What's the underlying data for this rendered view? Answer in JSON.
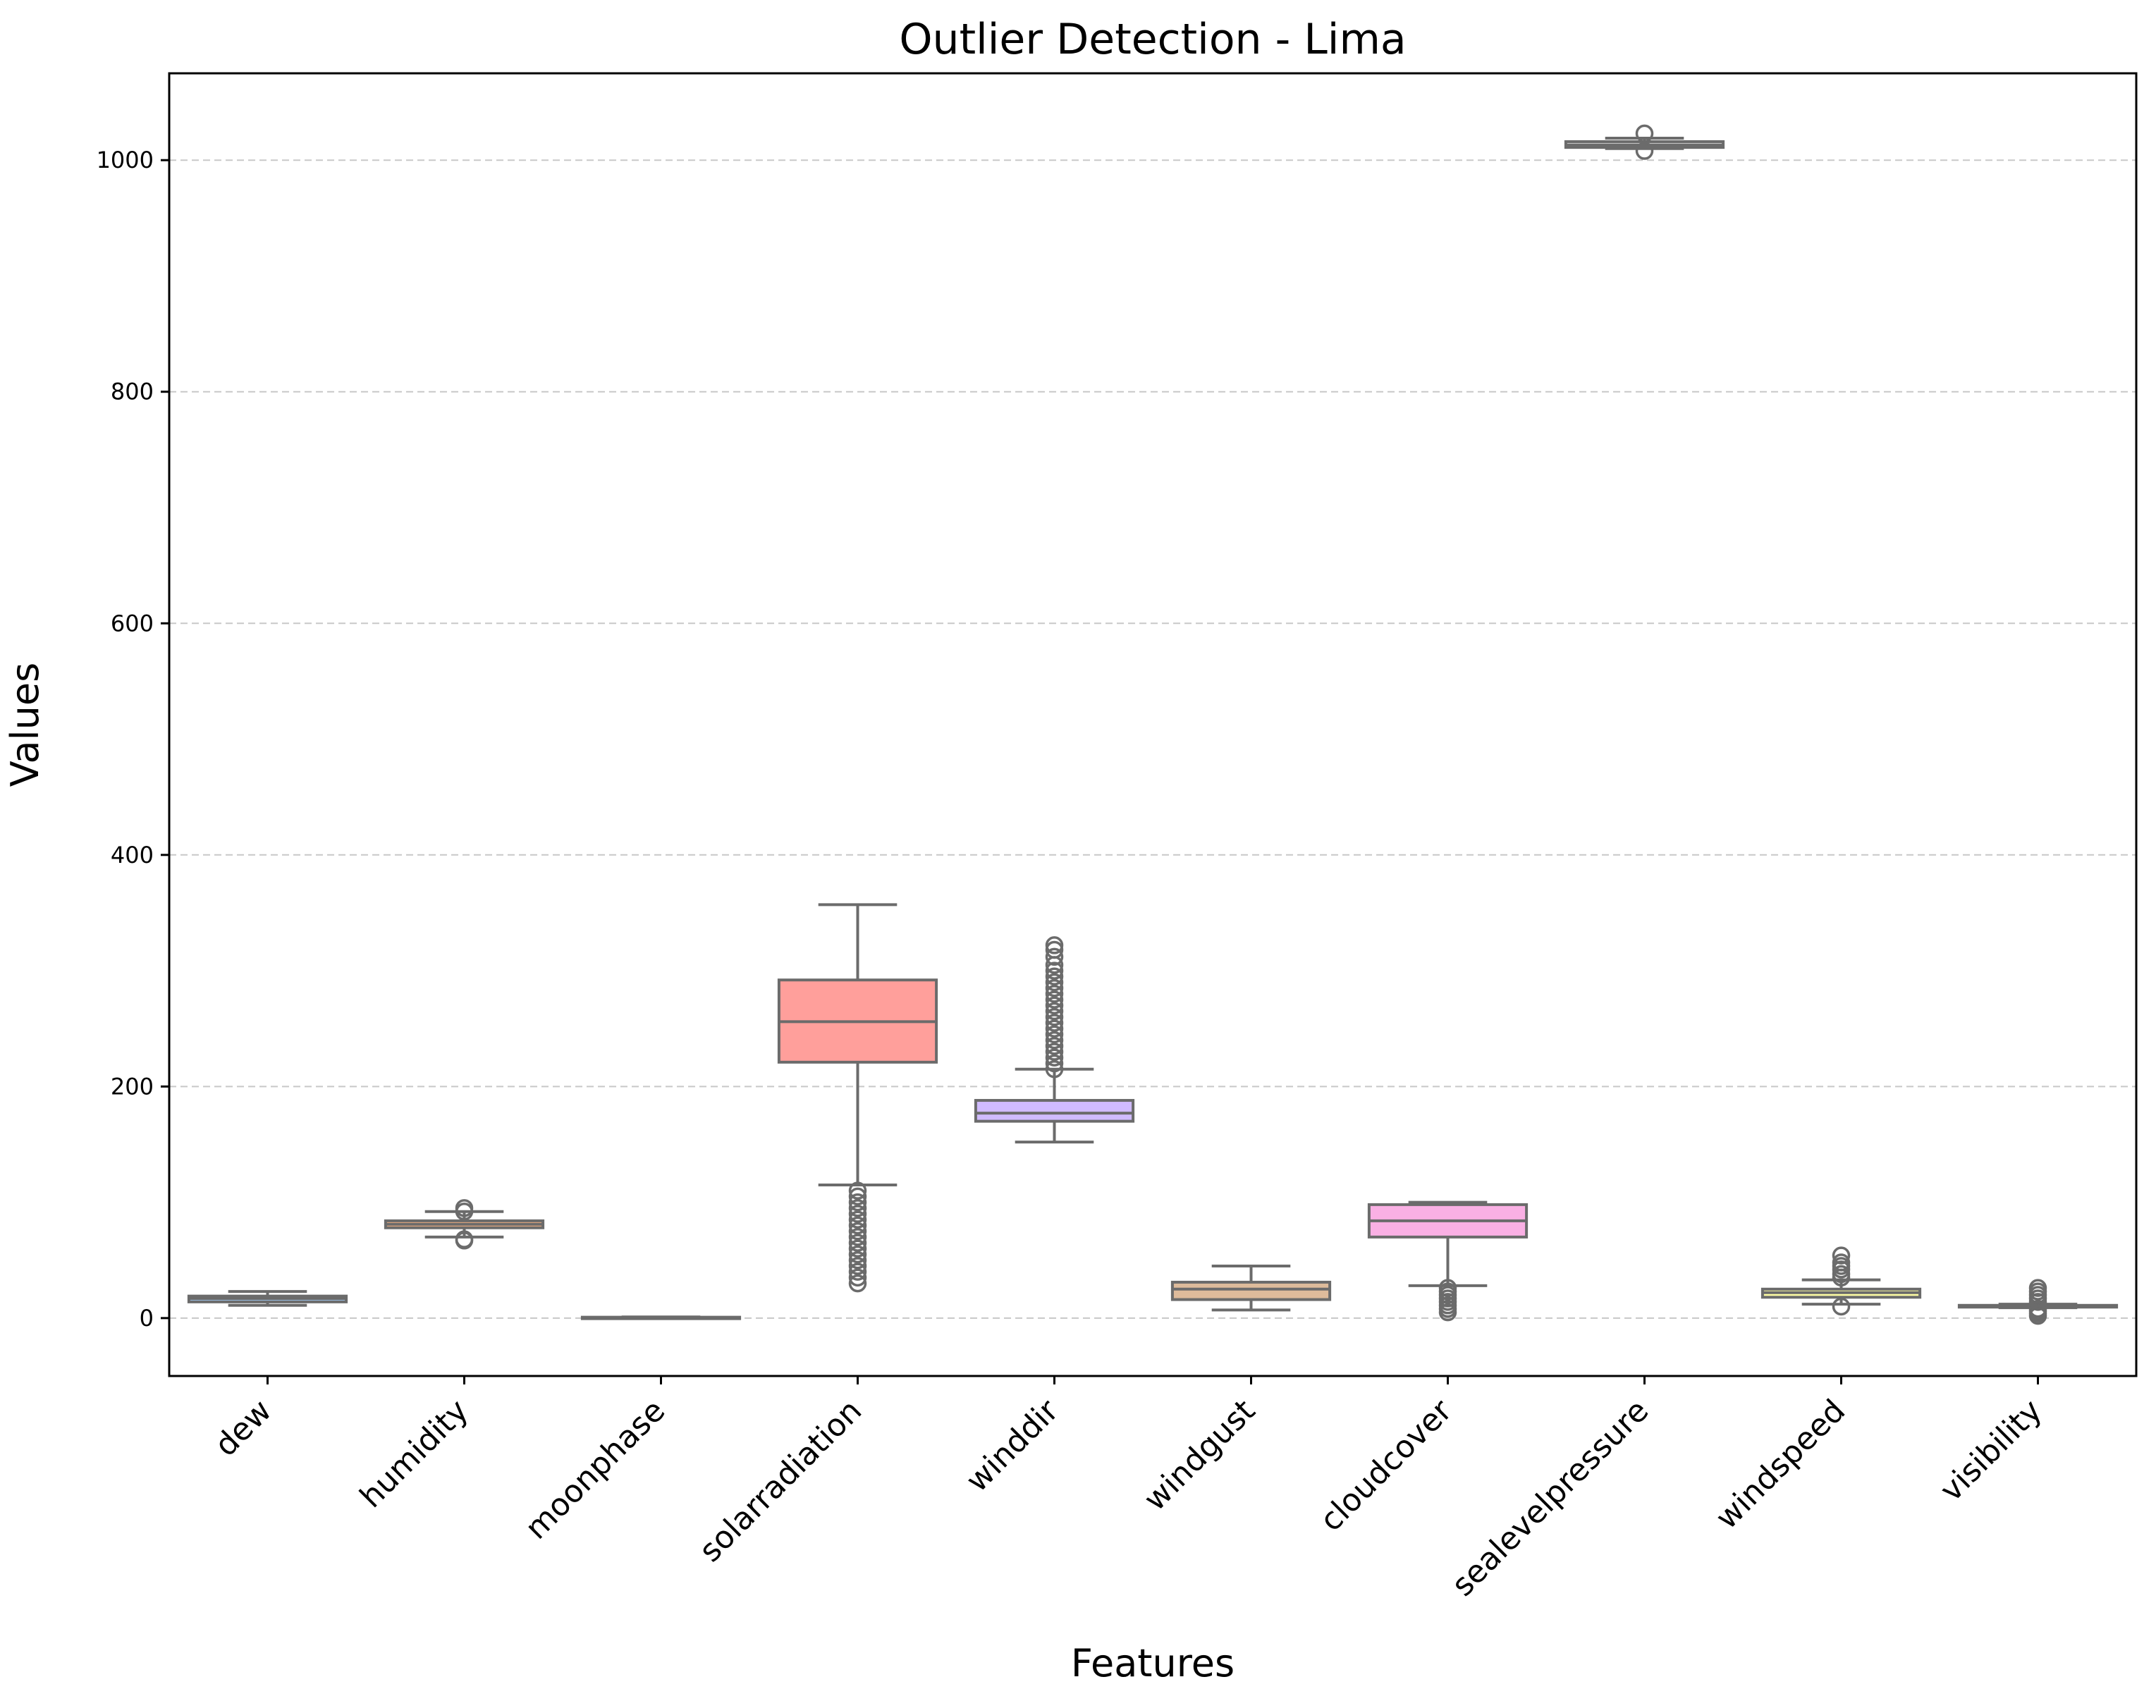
{
  "chart_data": {
    "type": "box",
    "title": "Outlier Detection - Lima",
    "xlabel": "Features",
    "ylabel": "Values",
    "ylim": [
      -50,
      1075
    ],
    "yticks": [
      0,
      200,
      400,
      600,
      800,
      1000
    ],
    "grid": "y-dashed",
    "categories": [
      "dew",
      "humidity",
      "moonphase",
      "solarradiation",
      "winddir",
      "windgust",
      "cloudcover",
      "sealevelpressure",
      "windspeed",
      "visibility"
    ],
    "boxes": [
      {
        "name": "dew",
        "whisker_low": 11,
        "q1": 14,
        "median": 17,
        "q3": 19,
        "whisker_high": 23,
        "color": "#a1c9f4",
        "outliers": []
      },
      {
        "name": "humidity",
        "whisker_low": 70,
        "q1": 78,
        "median": 81,
        "q3": 84,
        "whisker_high": 92,
        "color": "#ffb482",
        "outliers": [
          67,
          68,
          92,
          95
        ]
      },
      {
        "name": "moonphase",
        "whisker_low": 0,
        "q1": 0.25,
        "median": 0.5,
        "q3": 0.75,
        "whisker_high": 1,
        "color": "#8de5a1",
        "outliers": []
      },
      {
        "name": "solarradiation",
        "whisker_low": 115,
        "q1": 221,
        "median": 256,
        "q3": 292,
        "whisker_high": 357,
        "color": "#ff9f9b",
        "outliers": [
          30,
          35,
          40,
          45,
          50,
          55,
          60,
          65,
          70,
          75,
          80,
          85,
          90,
          95,
          100,
          105,
          110
        ]
      },
      {
        "name": "winddir",
        "whisker_low": 152,
        "q1": 170,
        "median": 177,
        "q3": 188,
        "whisker_high": 215,
        "color": "#d0bbff",
        "outliers": [
          215,
          220,
          225,
          230,
          235,
          240,
          245,
          250,
          255,
          260,
          265,
          270,
          275,
          280,
          285,
          290,
          295,
          300,
          305,
          312,
          318,
          322
        ]
      },
      {
        "name": "windgust",
        "whisker_low": 7,
        "q1": 16,
        "median": 25,
        "q3": 31,
        "whisker_high": 45,
        "color": "#debb9b",
        "outliers": []
      },
      {
        "name": "cloudcover",
        "whisker_low": 28,
        "q1": 70,
        "median": 84,
        "q3": 98,
        "whisker_high": 100,
        "color": "#fab0e4",
        "outliers": [
          5,
          8,
          11,
          14,
          17,
          20,
          23,
          26
        ]
      },
      {
        "name": "sealevelpressure",
        "whisker_low": 1010,
        "q1": 1011,
        "median": 1013,
        "q3": 1016,
        "whisker_high": 1019,
        "color": "#cfcfcf",
        "outliers": [
          1008,
          1023
        ]
      },
      {
        "name": "windspeed",
        "whisker_low": 12,
        "q1": 18,
        "median": 22,
        "q3": 25,
        "whisker_high": 33,
        "color": "#fffea3",
        "outliers": [
          10,
          35,
          38,
          42,
          45,
          48,
          54
        ]
      },
      {
        "name": "visibility",
        "whisker_low": 9,
        "q1": 9.5,
        "median": 10,
        "q3": 11,
        "whisker_high": 12,
        "color": "#b9f2f0",
        "outliers": [
          2,
          4,
          6,
          8,
          14,
          17,
          20,
          23,
          26
        ]
      }
    ]
  }
}
